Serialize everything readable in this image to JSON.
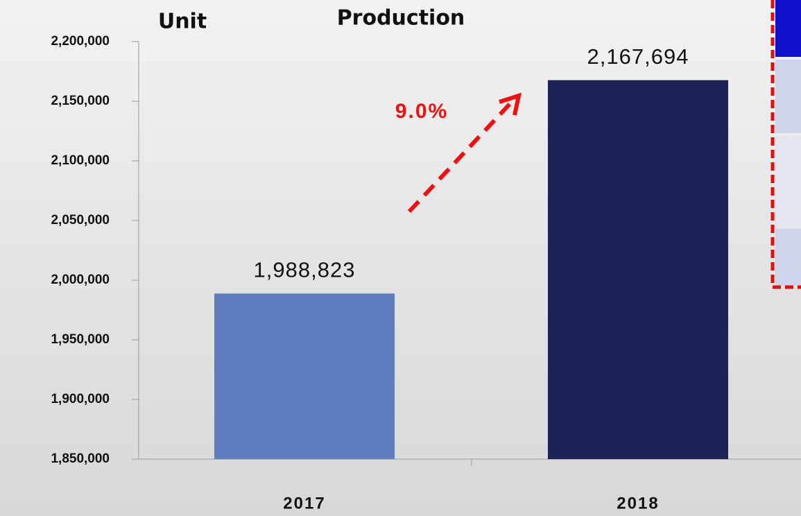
{
  "chart_data": {
    "type": "bar",
    "title": "Production",
    "y_axis_label": "Unit",
    "categories": [
      "2017",
      "2018"
    ],
    "values": [
      1988823,
      2167694
    ],
    "value_labels": [
      "1,988,823",
      "2,167,694"
    ],
    "colors": [
      "#627dbd",
      "#1b2358"
    ],
    "annotation": "9.0%",
    "ylim": [
      1850000,
      2200000
    ],
    "yticks": [
      {
        "value": 1850000,
        "label": "1,850,000"
      },
      {
        "value": 1900000,
        "label": "1,900,000"
      },
      {
        "value": 1950000,
        "label": "1,950,000"
      },
      {
        "value": 2000000,
        "label": "2,000,000"
      },
      {
        "value": 2050000,
        "label": "2,050,000"
      },
      {
        "value": 2100000,
        "label": "2,100,000"
      },
      {
        "value": 2150000,
        "label": "2,150,000"
      },
      {
        "value": 2200000,
        "label": "2,200,000"
      }
    ],
    "grid": false
  }
}
